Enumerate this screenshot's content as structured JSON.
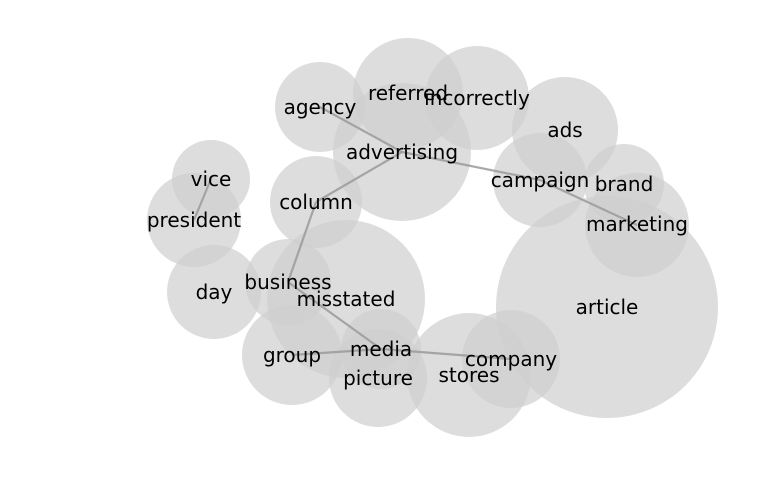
{
  "words": {
    "agency": "agency",
    "referred": "referred",
    "incorrectly": "incorrectly",
    "advertising": "advertising",
    "ads": "ads",
    "campaign": "campaign",
    "brand": "brand",
    "marketing": "marketing",
    "vice": "vice",
    "president": "president",
    "column": "column",
    "day": "day",
    "business": "business",
    "misstated": "misstated",
    "article": "article",
    "group": "group",
    "media": "media",
    "picture": "picture",
    "stores": "stores",
    "company": "company"
  },
  "colors": {
    "bubble": "#cfcfcf",
    "edge": "#9a9a9a",
    "text": "#000000"
  }
}
